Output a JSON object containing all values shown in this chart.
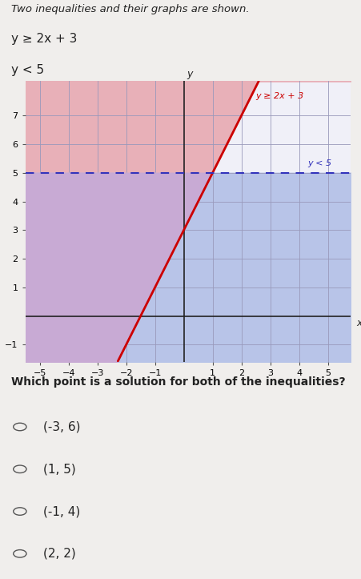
{
  "title_line1": "Two inequalities and their graphs are shown.",
  "title_line2": "y ≥ 2x + 3",
  "title_line3": "y < 5",
  "question": "Which point is a solution for both of the inequalities?",
  "choices": [
    "(-3, 6)",
    "(1, 5)",
    "(-1, 4)",
    "(2, 2)"
  ],
  "xlim": [
    -5.5,
    5.8
  ],
  "ylim": [
    -1.6,
    8.2
  ],
  "xticks": [
    -5,
    -4,
    -3,
    -2,
    -1,
    1,
    2,
    3,
    4,
    5
  ],
  "yticks": [
    -1,
    1,
    2,
    3,
    4,
    5,
    6,
    7
  ],
  "xlabel": "x",
  "ylabel": "y",
  "line1_label": "y ≥ 2x + 3",
  "line2_label": "y < 5",
  "line1_color": "#cc0000",
  "line2_color": "#3333bb",
  "shade_pink": "#e8b0b8",
  "shade_blue": "#b8c4e8",
  "shade_purple": "#c8aad4",
  "shade_white": "#f5f5f8",
  "grid_color": "#9999bb",
  "graph_bg": "#f0f0f8",
  "fig_bg": "#f0eeec",
  "font_color": "#222222",
  "tick_fontsize": 8,
  "label_fontsize": 9
}
